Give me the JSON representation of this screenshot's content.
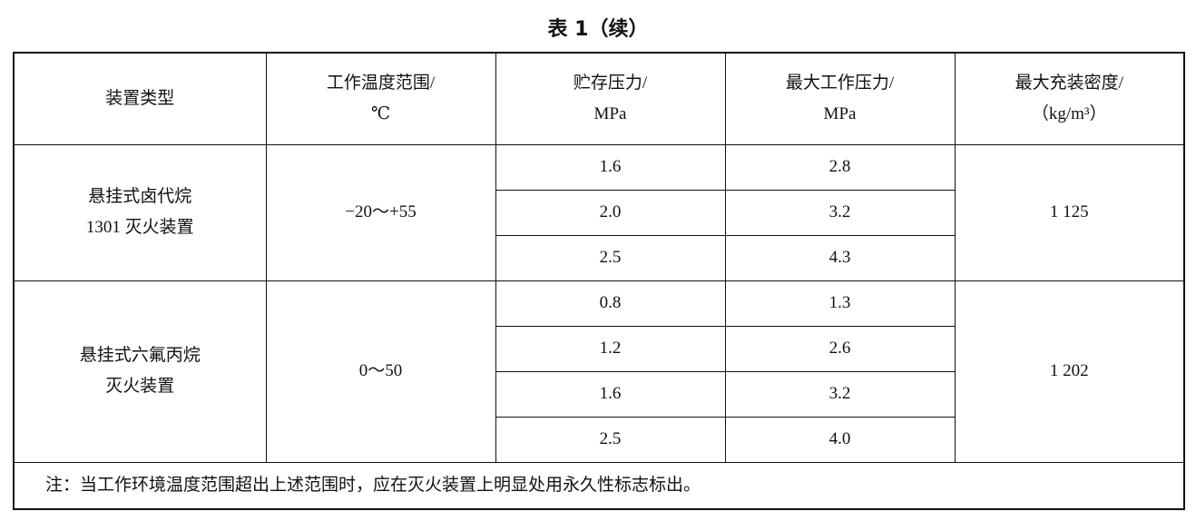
{
  "title": "表 1（续）",
  "table": {
    "header": [
      [
        "装置类型"
      ],
      [
        "工作温度范围/",
        "℃"
      ],
      [
        "贮存压力/",
        "MPa"
      ],
      [
        "最大工作压力/",
        "MPa"
      ],
      [
        "最大充装密度/",
        "（kg/m³）"
      ]
    ],
    "groups": [
      {
        "device": [
          "悬挂式卤代烷",
          "1301 灭火装置"
        ],
        "temperature": "−20～+55",
        "storage_pressure": [
          "1.6",
          "2.0",
          "2.5"
        ],
        "max_pressure": [
          "2.8",
          "3.2",
          "4.3"
        ],
        "density": "1 125"
      },
      {
        "device": [
          "悬挂式六氟丙烷",
          "灭火装置"
        ],
        "temperature": "0～50",
        "storage_pressure": [
          "0.8",
          "1.2",
          "1.6",
          "2.5"
        ],
        "max_pressure": [
          "1.3",
          "2.6",
          "3.2",
          "4.0"
        ],
        "density": "1 202"
      }
    ],
    "note": "注：当工作环境温度范围超出上述范围时，应在灭火装置上明显处用永久性标志标出。"
  }
}
